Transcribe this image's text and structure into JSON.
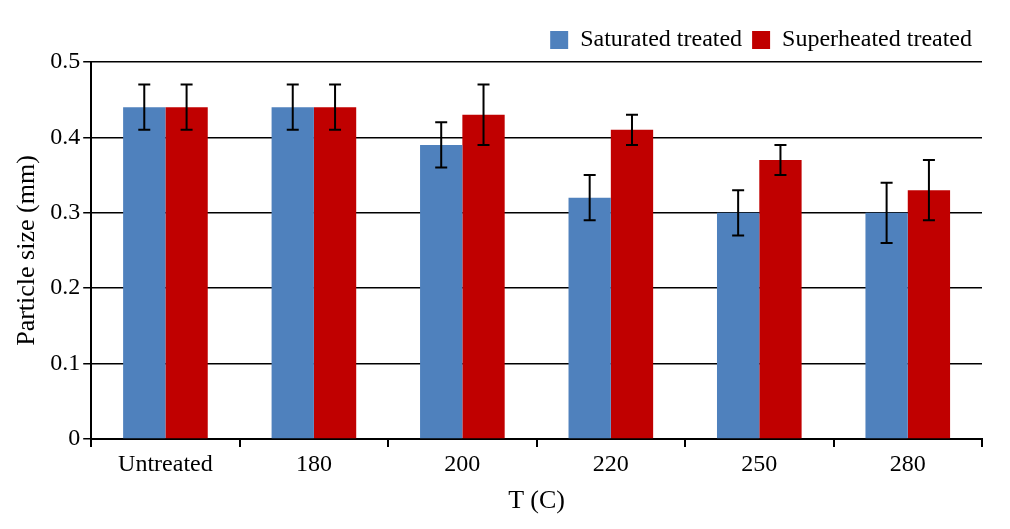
{
  "chart_data": {
    "type": "bar",
    "xlabel": "T (C)",
    "ylabel": "Particle size (mm)",
    "categories": [
      "Untreated",
      "180",
      "200",
      "220",
      "250",
      "280"
    ],
    "series": [
      {
        "name": "Saturated treated",
        "color": "#4f81bd",
        "values": [
          0.44,
          0.44,
          0.39,
          0.32,
          0.3,
          0.3
        ],
        "errors": [
          0.03,
          0.03,
          0.03,
          0.03,
          0.03,
          0.04
        ]
      },
      {
        "name": "Superheated treated",
        "color": "#c00000",
        "values": [
          0.44,
          0.44,
          0.43,
          0.41,
          0.37,
          0.33
        ],
        "errors": [
          0.03,
          0.03,
          0.04,
          0.02,
          0.02,
          0.04
        ]
      }
    ],
    "ylim": [
      0,
      0.5
    ],
    "yticks": [
      0,
      0.1,
      0.2,
      0.3,
      0.4,
      0.5
    ],
    "grid": "y",
    "legend": "top right"
  }
}
